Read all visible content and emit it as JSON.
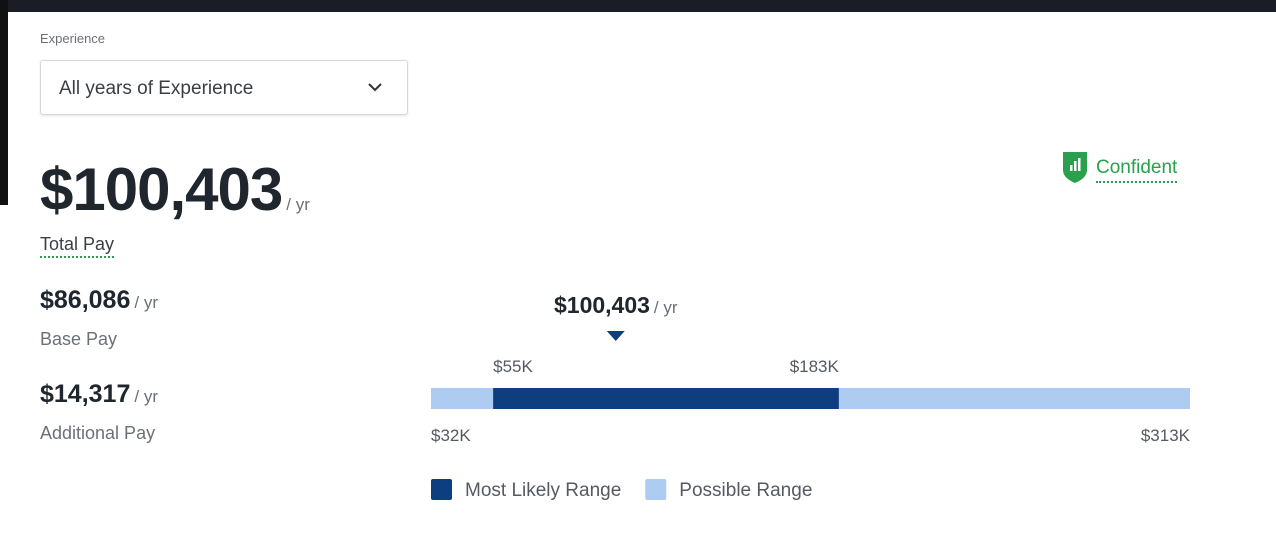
{
  "experience": {
    "label": "Experience",
    "selected": "All years of Experience"
  },
  "total_pay": {
    "amount": "$100,403",
    "unit": "/ yr",
    "label": "Total Pay"
  },
  "confidence": "Confident",
  "base_pay": {
    "amount": "$86,086",
    "unit": "/ yr",
    "label": "Base Pay"
  },
  "additional_pay": {
    "amount": "$14,317",
    "unit": "/ yr",
    "label": "Additional Pay"
  },
  "range": {
    "min": {
      "value": 32000,
      "label": "$32K"
    },
    "max": {
      "value": 313000,
      "label": "$313K"
    },
    "likely_low": {
      "value": 55000,
      "label": "$55K"
    },
    "likely_high": {
      "value": 183000,
      "label": "$183K"
    },
    "marker": {
      "value": 100403,
      "label": "$100,403",
      "unit": "/ yr"
    },
    "likely_color": "#0d3f80",
    "possible_color": "#aecbf2",
    "legend": [
      "Most Likely Range",
      "Possible Range"
    ]
  }
}
